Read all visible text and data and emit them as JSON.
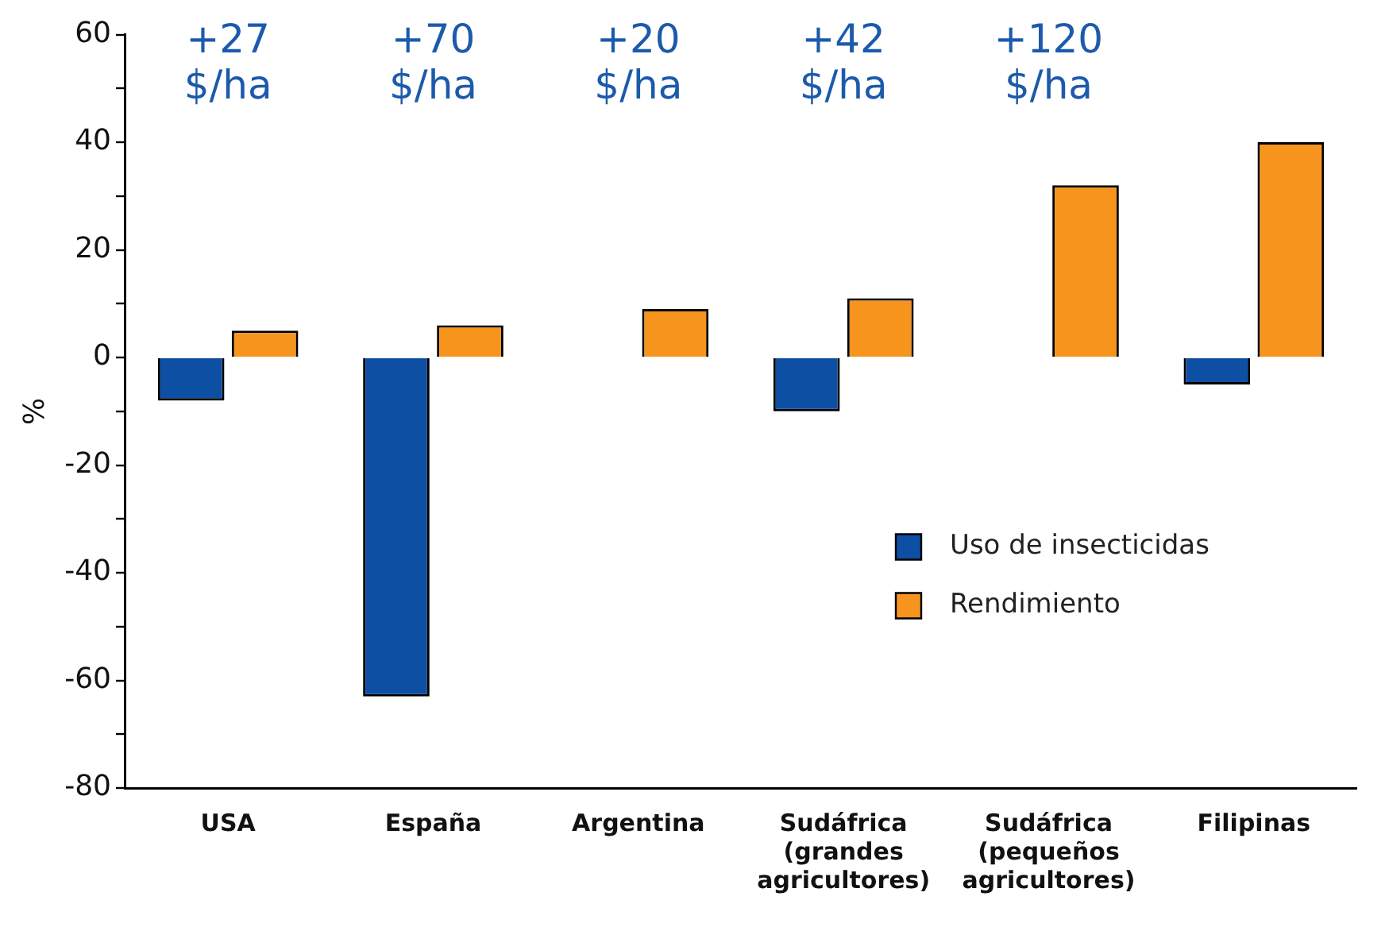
{
  "chart_data": {
    "type": "bar",
    "ylabel": "%",
    "categories": [
      "USA",
      "España",
      "Argentina",
      "Sudáfrica\n(grandes\nagricultores)",
      "Sudáfrica\n(pequeños\nagricultores)",
      "Filipinas"
    ],
    "series": [
      {
        "name": "Uso de insecticidas",
        "color": "#0d4fa3",
        "values": [
          -8,
          -63,
          null,
          -10,
          null,
          -5
        ]
      },
      {
        "name": "Rendimiento",
        "color": "#f7941d",
        "values": [
          5,
          6,
          9,
          11,
          32,
          40
        ]
      }
    ],
    "ylim": [
      -80,
      60
    ],
    "yticks": [
      -80,
      {
        "value": -70,
        "label": null
      },
      -60,
      {
        "value": -50,
        "label": null
      },
      -40,
      {
        "value": -30,
        "label": null
      },
      -20,
      {
        "value": -10,
        "label": null
      },
      0,
      {
        "value": 10,
        "label": null
      },
      20,
      {
        "value": 30,
        "label": null
      },
      40,
      {
        "value": 50,
        "label": null
      },
      60
    ],
    "annotations": [
      "+27\n$/ha",
      "+70\n$/ha",
      "+20\n$/ha",
      "+42\n$/ha",
      "+120\n$/ha"
    ],
    "grid": false,
    "legend": "right"
  }
}
